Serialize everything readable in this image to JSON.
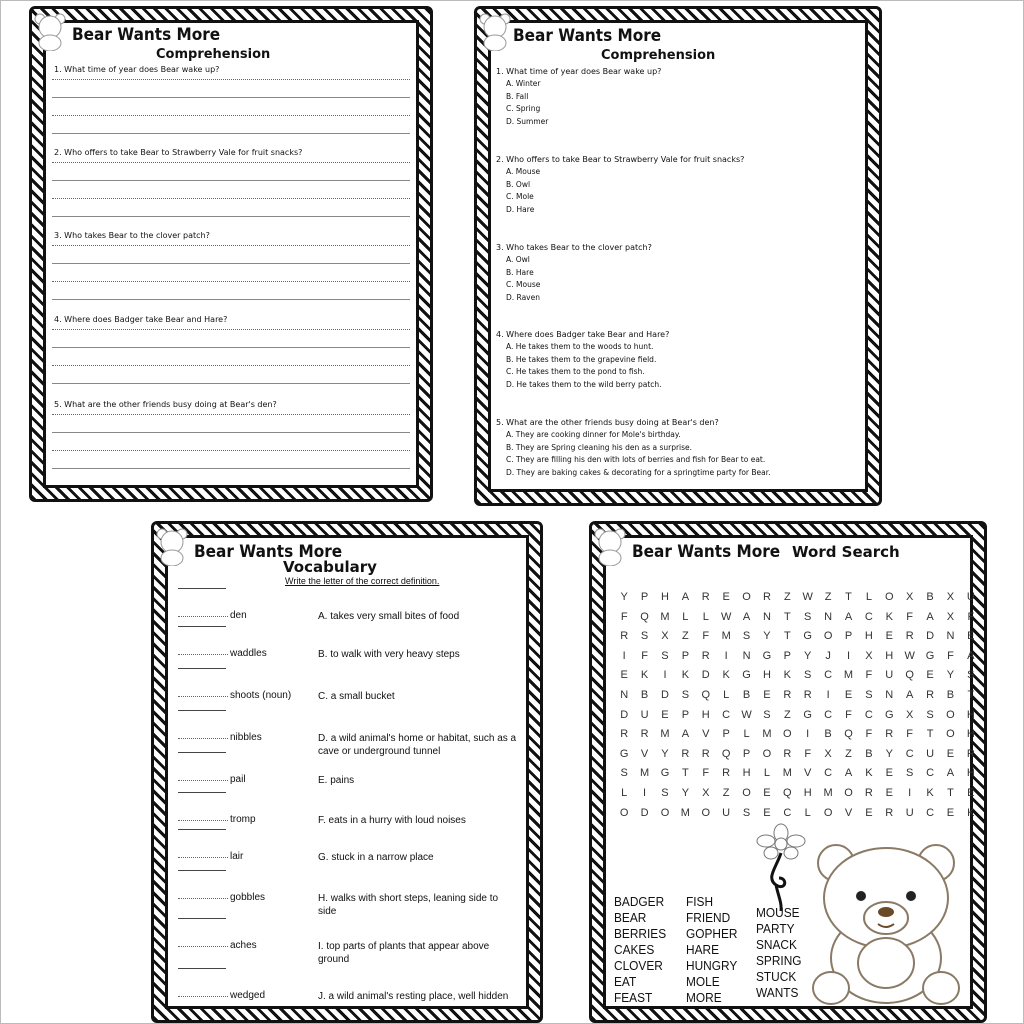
{
  "title": "Bear Wants More",
  "worksheet1": {
    "heading": "Comprehension",
    "questions": [
      "1.  What time of year does Bear wake up?",
      "2.  Who offers to take Bear to Strawberry Vale for fruit snacks?",
      "3.  Who takes Bear to the clover patch?",
      "4.  Where does Badger take Bear and Hare?",
      "5.  What are the other friends busy doing at Bear's den?"
    ]
  },
  "worksheet2": {
    "heading": "Comprehension",
    "questions": [
      {
        "q": "1.  What time of year does Bear wake up?",
        "options": [
          "A.  Winter",
          "B.  Fall",
          "C.  Spring",
          "D.  Summer"
        ]
      },
      {
        "q": "2.  Who offers to take Bear to Strawberry Vale for fruit snacks?",
        "options": [
          "A.  Mouse",
          "B.  Owl",
          "C.  Mole",
          "D.  Hare"
        ]
      },
      {
        "q": "3.  Who takes Bear to the clover patch?",
        "options": [
          "A.  Owl",
          "B.  Hare",
          "C.  Mouse",
          "D.  Raven"
        ]
      },
      {
        "q": "4.  Where does Badger take Bear and Hare?",
        "options": [
          "A.  He takes them to the woods to hunt.",
          "B.  He takes them to the grapevine field.",
          "C.  He takes them to the pond to fish.",
          "D.  He takes them to the wild berry patch."
        ]
      },
      {
        "q": "5.  What are the other friends busy doing at Bear's den?",
        "options": [
          "A.  They are cooking dinner for Mole's birthday.",
          "B.  They are Spring cleaning his den as a surprise.",
          "C.  They are filling his den with lots of berries and fish for Bear to eat.",
          "D.  They are baking cakes & decorating for a springtime party for Bear."
        ]
      }
    ]
  },
  "worksheet3": {
    "heading": "Vocabulary",
    "instruction": "Write the letter of the correct definition.",
    "words": [
      "den",
      "waddles",
      "shoots (noun)",
      "nibbles",
      "pail",
      "tromp",
      "lair",
      "gobbles",
      "aches",
      "wedged"
    ],
    "definitions": [
      "A. takes very small bites of food",
      "B. to walk with very heavy steps",
      "C. a small bucket",
      "D.  a wild animal's home or habitat, such as a cave or underground tunnel",
      "E. pains",
      "F. eats in a hurry with loud noises",
      "G. stuck in a narrow place",
      "H. walks with short steps, leaning side to side",
      "I.  top parts of plants that appear above ground",
      "J. a wild animal's resting place, well hidden"
    ]
  },
  "worksheet4": {
    "heading": "Word Search",
    "grid": [
      "YPHAREORZWZTLOXBXU",
      "FQMLLWANTSNACKFAXF",
      "RSXZFMSYTGOPHERDNE",
      "IFSPRINGPYJIXHWGFA",
      "EKIKDKGHKSCMFUQEYS",
      "NBDSQLBERRIESNARBT",
      "DUEPHCWSZGCFCGXSOH",
      "RRMAVPLMOIBQFRFTOH",
      "GVYRRQPORFXZBYCUER",
      "SMGTFRHLMVCAKESCAH",
      "LISYXZOEQHMOREIKTE",
      "ODOMOUSECLOVERUCEK"
    ],
    "words": [
      [
        "BADGER",
        "BEAR",
        "BERRIES",
        "CAKES",
        "CLOVER",
        "EAT",
        "FEAST"
      ],
      [
        "FISH",
        "FRIEND",
        "GOPHER",
        "HARE",
        "HUNGRY",
        "MOLE",
        "MORE"
      ],
      [
        "MOUSE",
        "PARTY",
        "SNACK",
        "SPRING",
        "STUCK",
        "WANTS"
      ]
    ]
  }
}
